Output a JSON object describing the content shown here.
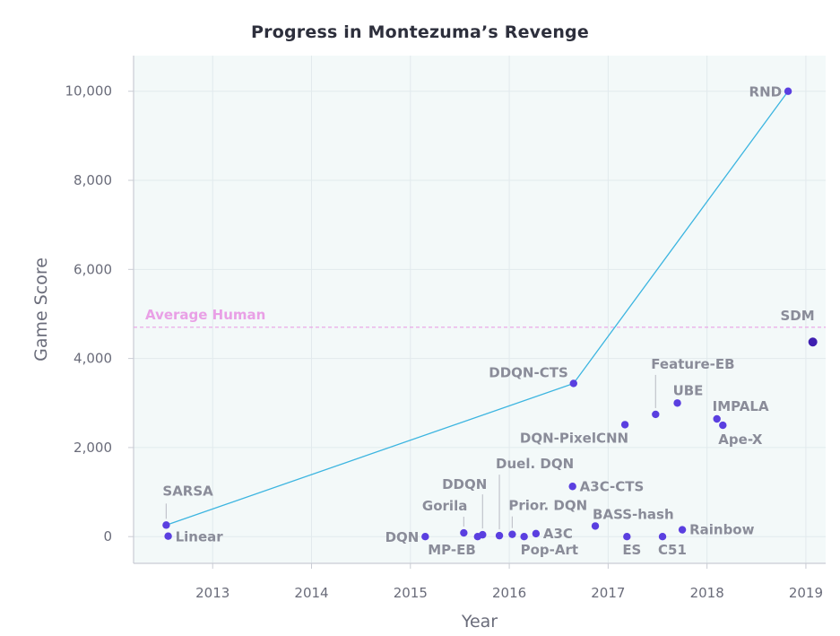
{
  "chart_data": {
    "type": "scatter",
    "title": "Progress in Montezuma’s Revenge",
    "xlabel": "Year",
    "ylabel": "Game Score",
    "xlim": [
      2012.2,
      2019.2
    ],
    "ylim": [
      -600,
      10800
    ],
    "x_ticks": [
      2013,
      2014,
      2015,
      2016,
      2017,
      2018,
      2019
    ],
    "y_ticks": [
      0,
      2000,
      4000,
      6000,
      8000,
      10000
    ],
    "y_tick_labels": [
      "0",
      "2,000",
      "4,000",
      "6,000",
      "8,000",
      "10,000"
    ],
    "grid": true,
    "colors": {
      "background": "#f3f9f9",
      "grid": "#e2eaed",
      "axis": "#c9ccd4",
      "point": "#5a3fe0",
      "sdm_point": "#3f1fb0",
      "frontier_line": "#3cb5e0",
      "human_line": "#e9a0e6",
      "label": "#8a8c99",
      "leader": "#c2c4cc"
    },
    "human_baseline": {
      "label": "Average Human",
      "value": 4700
    },
    "frontier": [
      {
        "x": 2012.53,
        "y": 259
      },
      {
        "x": 2016.65,
        "y": 3439
      },
      {
        "x": 2018.82,
        "y": 10000
      }
    ],
    "points": [
      {
        "label": "SARSA",
        "x": 2012.53,
        "y": 259
      },
      {
        "label": "Linear",
        "x": 2012.55,
        "y": 10
      },
      {
        "label": "DQN",
        "x": 2015.15,
        "y": 0
      },
      {
        "label": "Gorila",
        "x": 2015.54,
        "y": 84
      },
      {
        "label": "MP-EB",
        "x": 2015.68,
        "y": 0
      },
      {
        "label": "DDQN",
        "x": 2015.73,
        "y": 42
      },
      {
        "label": "Duel. DQN",
        "x": 2015.9,
        "y": 22
      },
      {
        "label": "Prior. DQN",
        "x": 2016.03,
        "y": 51
      },
      {
        "label": "Pop-Art",
        "x": 2016.15,
        "y": 0
      },
      {
        "label": "A3C",
        "x": 2016.27,
        "y": 67
      },
      {
        "label": "DDQN-CTS",
        "x": 2016.65,
        "y": 3439
      },
      {
        "label": "A3C-CTS",
        "x": 2016.64,
        "y": 1127
      },
      {
        "label": "BASS-hash",
        "x": 2016.87,
        "y": 238
      },
      {
        "label": "DQN-PixelCNN",
        "x": 2017.17,
        "y": 2514
      },
      {
        "label": "ES",
        "x": 2017.19,
        "y": 0
      },
      {
        "label": "Feature-EB",
        "x": 2017.48,
        "y": 2745
      },
      {
        "label": "C51",
        "x": 2017.55,
        "y": 0
      },
      {
        "label": "UBE",
        "x": 2017.7,
        "y": 3000
      },
      {
        "label": "Rainbow",
        "x": 2017.75,
        "y": 154
      },
      {
        "label": "IMPALA",
        "x": 2018.1,
        "y": 2643
      },
      {
        "label": "Ape-X",
        "x": 2018.16,
        "y": 2500
      },
      {
        "label": "RND",
        "x": 2018.82,
        "y": 10000
      },
      {
        "label": "SDM",
        "x": 2019.07,
        "y": 4370
      }
    ]
  }
}
